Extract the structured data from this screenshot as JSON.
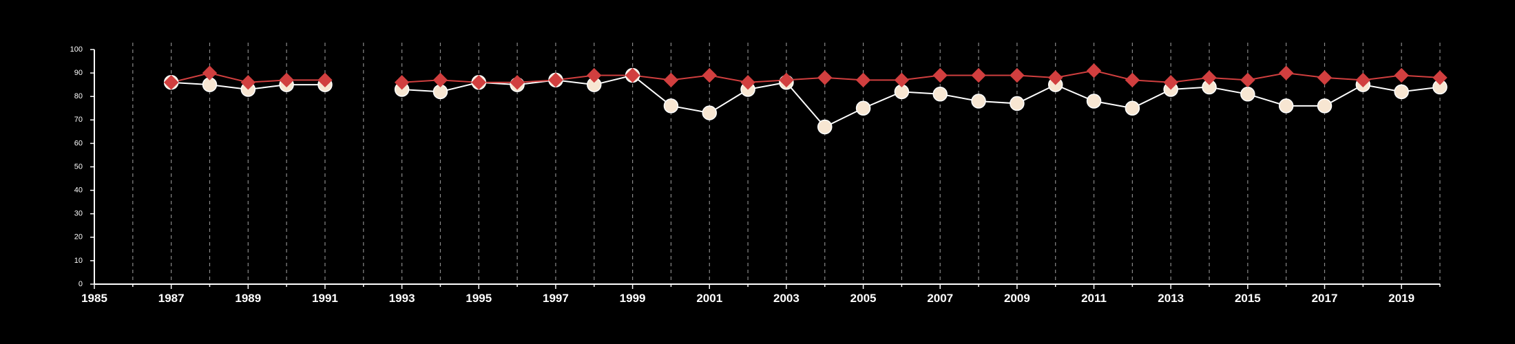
{
  "chart_data": {
    "type": "line",
    "title": "",
    "xlabel": "",
    "ylabel": "",
    "xlim": [
      1985,
      2020
    ],
    "ylim": [
      0,
      100
    ],
    "y_ticks": [
      0,
      10,
      20,
      30,
      40,
      50,
      60,
      70,
      80,
      90,
      100
    ],
    "x_tick_labels": [
      1985,
      1987,
      1989,
      1991,
      1993,
      1995,
      1997,
      1999,
      2001,
      2003,
      2005,
      2007,
      2009,
      2011,
      2013,
      2015,
      2017,
      2019
    ],
    "vertical_gridlines": "dashed, every year",
    "legend": "none",
    "x": [
      1987,
      1988,
      1989,
      1990,
      1991,
      1992,
      1993,
      1994,
      1995,
      1996,
      1997,
      1998,
      1999,
      2000,
      2001,
      2002,
      2003,
      2004,
      2005,
      2006,
      2007,
      2008,
      2009,
      2010,
      2011,
      2012,
      2013,
      2014,
      2015,
      2016,
      2017,
      2018,
      2019,
      2020
    ],
    "series": [
      {
        "marker": "circle",
        "color": "#ffffff",
        "marker_fill": "#f7e6d2",
        "values": [
          86,
          85,
          83,
          85,
          85,
          null,
          83,
          82,
          86,
          85,
          87,
          85,
          89,
          76,
          73,
          83,
          86,
          67,
          75,
          82,
          81,
          78,
          77,
          85,
          78,
          75,
          83,
          84,
          81,
          76,
          76,
          85,
          82,
          84
        ]
      },
      {
        "marker": "diamond",
        "color": "#d13f3f",
        "marker_fill": "#d13f3f",
        "values": [
          86,
          90,
          86,
          87,
          87,
          null,
          86,
          87,
          86,
          86,
          87,
          89,
          89,
          87,
          89,
          86,
          87,
          88,
          87,
          87,
          89,
          89,
          89,
          88,
          91,
          87,
          86,
          88,
          87,
          90,
          88,
          87,
          89,
          88
        ]
      }
    ]
  }
}
